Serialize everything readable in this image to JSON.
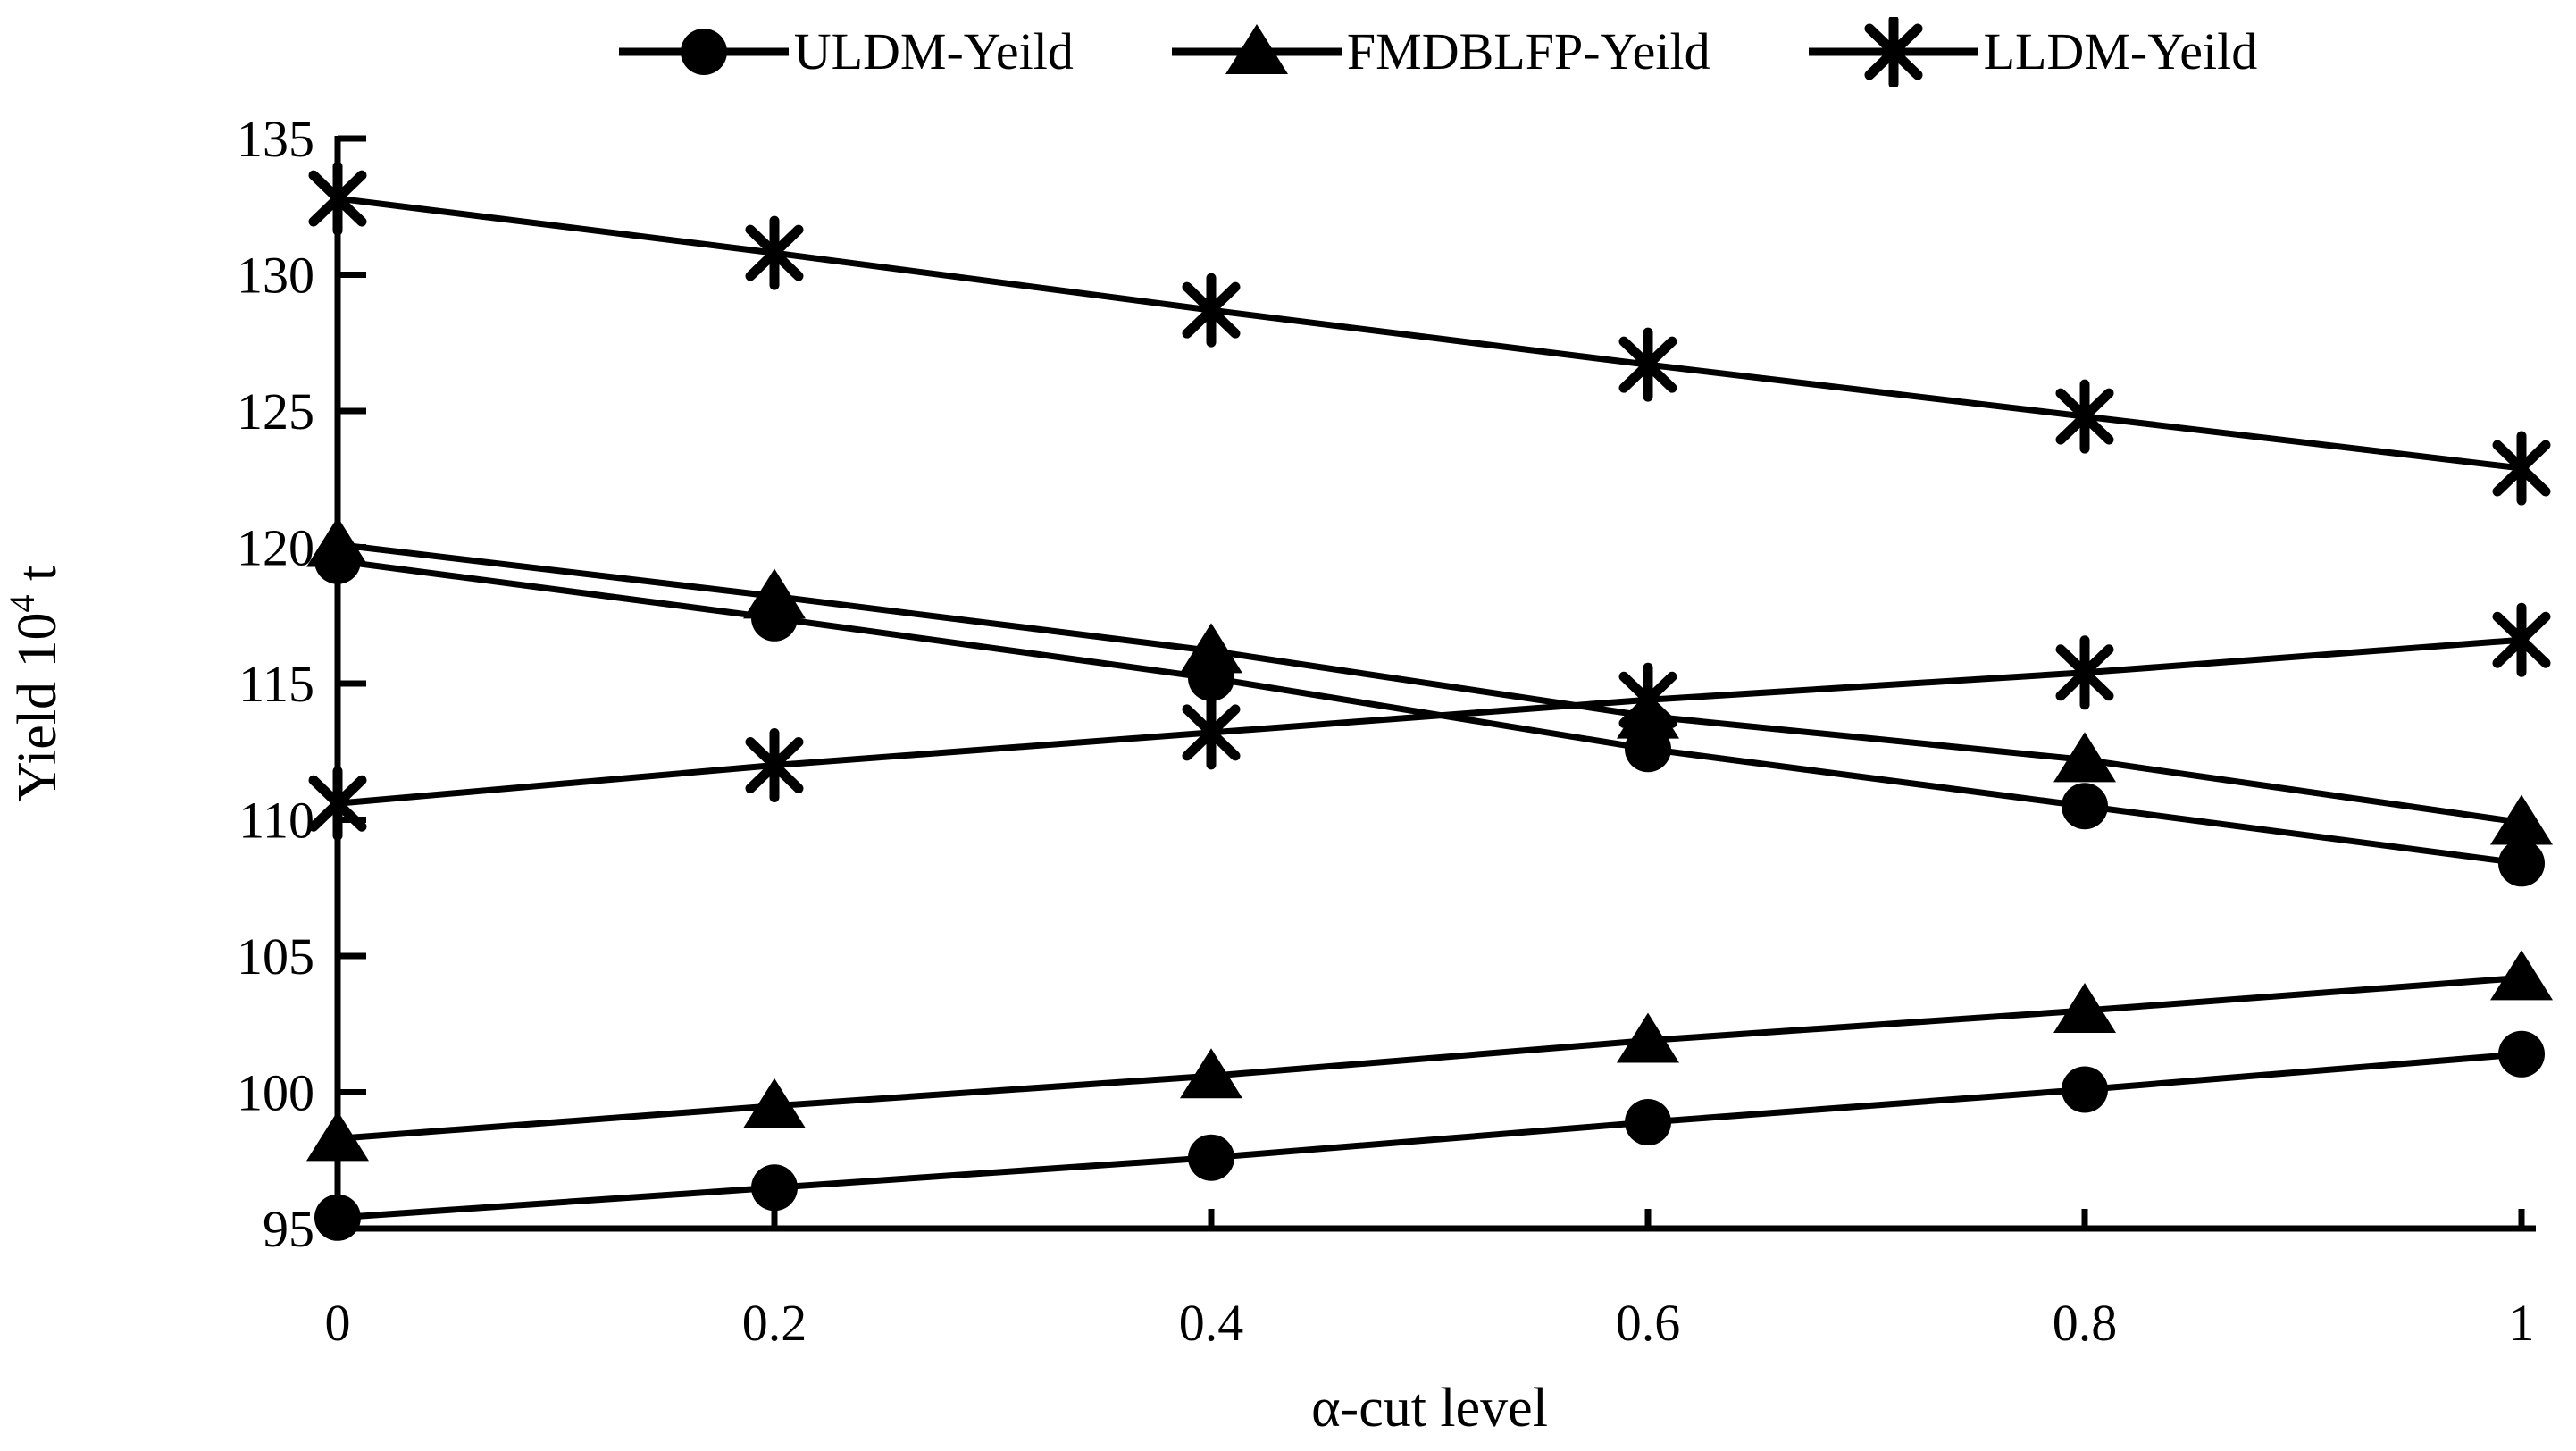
{
  "chart_data": {
    "type": "line",
    "title": "",
    "xlabel": "α-cut level",
    "ylabel": "Yield 10⁴ t",
    "ylabel_parts": {
      "prefix": "Yield 10",
      "superscript": "4",
      "suffix": " t"
    },
    "x": [
      0,
      0.2,
      0.4,
      0.6,
      0.8,
      1
    ],
    "xtick_labels": [
      "0",
      "0.2",
      "0.4",
      "0.6",
      "0.8",
      "1"
    ],
    "ytick_labels": [
      "95",
      "100",
      "105",
      "110",
      "115",
      "120",
      "125",
      "130",
      "135"
    ],
    "xlim": [
      0,
      1
    ],
    "ylim": [
      95,
      135
    ],
    "ytick_step": 5,
    "grid": false,
    "legend_position": "top",
    "line_color": "#000000",
    "background_color": "#ffffff",
    "legend": [
      {
        "label": "ULDM-Yeild",
        "marker": "circle"
      },
      {
        "label": "FMDBLFP-Yeild",
        "marker": "triangle"
      },
      {
        "label": "LLDM-Yeild",
        "marker": "asterisk"
      }
    ],
    "series": [
      {
        "name": "ULDM-Yeild (upper bound)",
        "marker": "circle",
        "values": [
          119.5,
          117.4,
          115.2,
          112.6,
          110.5,
          108.4
        ]
      },
      {
        "name": "ULDM-Yeild (lower bound)",
        "marker": "circle",
        "values": [
          95.4,
          96.5,
          97.6,
          98.9,
          100.1,
          101.4
        ]
      },
      {
        "name": "FMDBLFP-Yeild (upper bound)",
        "marker": "triangle",
        "values": [
          120.1,
          118.2,
          116.2,
          113.8,
          112.2,
          109.9
        ]
      },
      {
        "name": "FMDBLFP-Yeild (lower bound)",
        "marker": "triangle",
        "values": [
          98.3,
          99.5,
          100.6,
          101.9,
          103.0,
          104.2
        ]
      },
      {
        "name": "LLDM-Yeild (upper bound)",
        "marker": "asterisk",
        "values": [
          132.8,
          130.8,
          128.7,
          126.7,
          124.8,
          122.9
        ]
      },
      {
        "name": "LLDM-Yeild (lower bound)",
        "marker": "asterisk",
        "values": [
          110.6,
          112.0,
          113.2,
          114.4,
          115.4,
          116.6
        ]
      }
    ]
  }
}
